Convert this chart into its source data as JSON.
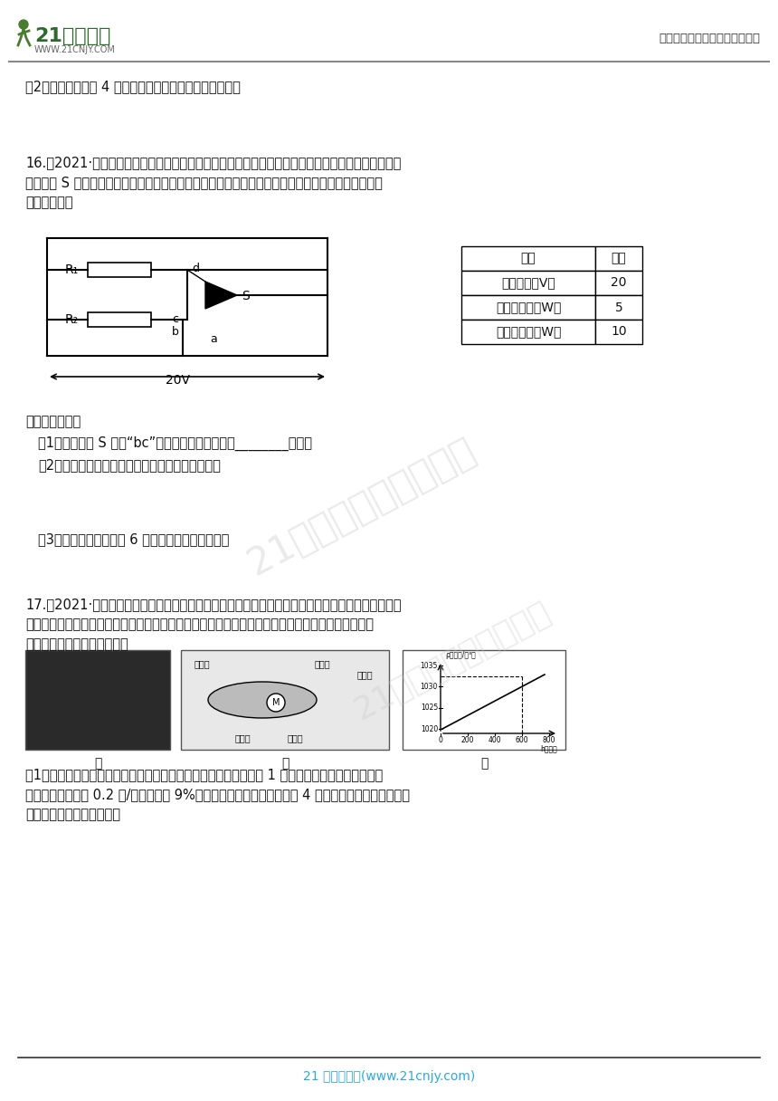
{
  "bg_color": "#ffffff",
  "header_right_text": "中小学教育资源及组卷应用平台",
  "footer_text": "21 世纪教育网(www.21cnjy.com)",
  "footer_line_color": "#333333",
  "footer_text_color": "#29abe2",
  "q2_text": "（2）灯泡正常工作 4 分钟，整个电路消耗的电能是多少？",
  "q16_intro_line1": "16.（2021·金华）便携式无线加湿器，让你随时随地实现加湿自由。某品牌便携式无线加湿器，通过",
  "q16_intro_line2": "旋转开关 S 接触不同触点，实现高、低两个檔位的转换，其简化的工作电路如图所示，铭牌上的部分",
  "q16_intro_line3": "参数如下表。",
  "table_headers": [
    "项目",
    "参数"
  ],
  "table_rows": [
    [
      "工作电压（V）",
      "20"
    ],
    [
      "低档位功率（W）",
      "5"
    ],
    [
      "高档位功率（W）",
      "10"
    ]
  ],
  "complete_text": "完成下列问题：",
  "q16_sub1": "（1）旋转开关 S 接触“bc”两触点时，加湿器属于________檔位；",
  "q16_sub2": "（2）加湿器低档位工作时，电路通过的电流多大？",
  "q16_sub3": "（3）加湿器高档位工作 6 小时，将消耗多少电能？",
  "q17_intro_line1": "17.（2021·温州）图甲所示为一种水下滑翅机，图乙是其部分结构示意图。该滑翅机通过液压泵将油",
  "q17_intro_line2": "在内、外油囊间来回转移，从而改变浮力大小以达到上浮和下潜的目的，再结合其它技术即可滑行，",
  "q17_intro_line3": "以执行海洋环境的监测任务。",
  "q17_sub1_line1": "（1）该滑翅机具有低能耗、高续航的特点，电池一次充电后能提供 1 千瓦时电能。它在整个运动过",
  "q17_sub1_line2": "程中前进速度保持 0.2 米/秒，但只有 9%的时间耗电，耗电时功率仅为 4 瓦。该滑翅机充电一次总共",
  "q17_sub1_line3": "能航行的路程为多少千米？",
  "watermark_text": "21世纪教育网精选资料",
  "logo_21_color": "#2d6b2d",
  "logo_www_color": "#555555"
}
